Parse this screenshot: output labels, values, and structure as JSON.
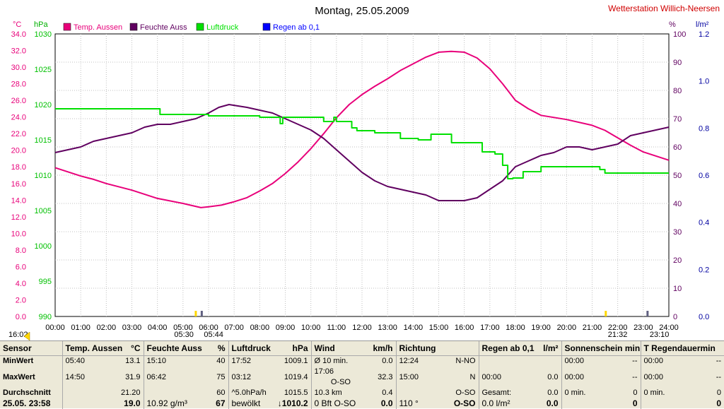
{
  "chart_data": {
    "type": "line",
    "title": "Montag, 25.05.2009",
    "station": "Wetterstation Willich-Neersen",
    "legend": [
      {
        "name": "Temp. Aussen",
        "color": "#e8007a"
      },
      {
        "name": "Feuchte Auss",
        "color": "#600060"
      },
      {
        "name": "Luftdruck",
        "color": "#00e000"
      },
      {
        "name": "Regen ab 0,1",
        "color": "#0000ff"
      }
    ],
    "axes": {
      "left_temp": {
        "unit": "°C",
        "min": 0,
        "max": 34,
        "ticks": [
          "0.0",
          "2.0",
          "4.0",
          "6.0",
          "8.0",
          "10.0",
          "12.0",
          "14.0",
          "16.0",
          "18.0",
          "20.0",
          "22.0",
          "24.0",
          "26.0",
          "28.0",
          "30.0",
          "32.0",
          "34.0"
        ]
      },
      "left_pressure": {
        "unit": "hPa",
        "min": 990,
        "max": 1030,
        "ticks": [
          "990",
          "995",
          "1000",
          "1005",
          "1010",
          "1015",
          "1020",
          "1025",
          "1030"
        ]
      },
      "right_humidity": {
        "unit": "%",
        "min": 0,
        "max": 100,
        "ticks": [
          "0",
          "10",
          "20",
          "30",
          "40",
          "50",
          "60",
          "70",
          "80",
          "90",
          "100"
        ]
      },
      "right_rain": {
        "unit": "l/m²",
        "min": 0,
        "max": 1.2,
        "ticks": [
          "0.0",
          "0.2",
          "0.4",
          "0.6",
          "0.8",
          "1.0",
          "1.2"
        ]
      },
      "x": {
        "ticks": [
          "00:00",
          "01:00",
          "02:00",
          "03:00",
          "04:00",
          "05:00",
          "06:00",
          "07:00",
          "08:00",
          "09:00",
          "10:00",
          "11:00",
          "12:00",
          "13:00",
          "14:00",
          "15:00",
          "16:00",
          "17:00",
          "18:00",
          "19:00",
          "20:00",
          "21:00",
          "22:00",
          "23:00",
          "24:00"
        ]
      }
    },
    "markers": {
      "time": "16:02",
      "sunrise": "05:30",
      "sunrise2": "05:44",
      "sunset": "21:32",
      "end": "23:10"
    },
    "series": [
      {
        "name": "Temp. Aussen",
        "axis": "temp",
        "x": [
          0,
          0.5,
          1,
          1.5,
          2,
          3,
          4,
          5,
          5.7,
          6,
          6.5,
          7,
          7.5,
          8,
          8.5,
          9,
          9.5,
          10,
          10.5,
          11,
          11.5,
          12,
          12.5,
          13,
          13.5,
          14,
          14.5,
          15,
          15.5,
          16,
          16.5,
          17,
          17.5,
          18,
          18.5,
          19,
          20,
          21,
          21.5,
          22,
          22.5,
          23,
          24
        ],
        "y": [
          17.9,
          17.4,
          16.9,
          16.5,
          16.0,
          15.2,
          14.2,
          13.6,
          13.1,
          13.2,
          13.4,
          13.8,
          14.3,
          15.1,
          16.0,
          17.2,
          18.6,
          20.2,
          22.0,
          23.9,
          25.5,
          26.7,
          27.7,
          28.6,
          29.6,
          30.4,
          31.2,
          31.8,
          31.9,
          31.8,
          31.1,
          29.8,
          28.0,
          26.0,
          25.0,
          24.2,
          23.7,
          23.0,
          22.4,
          21.5,
          20.6,
          19.8,
          18.8
        ]
      },
      {
        "name": "Feuchte Auss",
        "axis": "humidity",
        "x": [
          0,
          0.5,
          1,
          1.5,
          2,
          2.5,
          3,
          3.5,
          4,
          4.5,
          5,
          5.5,
          6,
          6.4,
          6.8,
          7.5,
          8,
          8.5,
          9,
          9.5,
          10,
          10.5,
          11,
          11.5,
          12,
          12.5,
          13,
          13.5,
          14,
          14.5,
          15,
          15.5,
          16,
          16.5,
          17,
          17.5,
          18,
          18.5,
          19,
          19.5,
          20,
          20.5,
          21,
          21.5,
          22,
          22.5,
          23,
          23.5,
          24
        ],
        "y": [
          58,
          59,
          60,
          62,
          63,
          64,
          65,
          67,
          68,
          68,
          69,
          70,
          72,
          74,
          75,
          74,
          73,
          72,
          70,
          68,
          66,
          63,
          59,
          55,
          51,
          48,
          46,
          45,
          44,
          43,
          41,
          41,
          41,
          42,
          45,
          48,
          53,
          55,
          57,
          58,
          60,
          60,
          59,
          60,
          61,
          64,
          65,
          66,
          67
        ]
      },
      {
        "name": "Luftdruck",
        "axis": "pressure",
        "x": [
          0,
          4.1,
          4.1,
          6,
          6,
          8,
          8,
          8.8,
          8.8,
          8.9,
          8.9,
          10.5,
          10.5,
          10.9,
          10.9,
          11.0,
          11.0,
          11.6,
          11.6,
          11.8,
          11.8,
          12.5,
          12.5,
          13.5,
          13.5,
          14.2,
          14.2,
          14.7,
          14.7,
          15.5,
          15.5,
          16.7,
          16.7,
          17.2,
          17.2,
          17.5,
          17.5,
          17.7,
          17.7,
          17.9,
          17.9,
          18.3,
          18.3,
          18.5,
          18.5,
          19,
          19,
          21.3,
          21.3,
          21.5,
          21.5,
          24
        ],
        "y": [
          1019.4,
          1019.4,
          1018.6,
          1018.6,
          1018.4,
          1018.4,
          1018.2,
          1018.2,
          1017.3,
          1017.3,
          1018.2,
          1018.2,
          1017.6,
          1017.6,
          1018.2,
          1018.2,
          1017.6,
          1017.6,
          1016.7,
          1016.7,
          1016.3,
          1016.3,
          1016.0,
          1016.0,
          1015.2,
          1015.2,
          1015.0,
          1015.0,
          1015.8,
          1015.8,
          1014.6,
          1014.6,
          1013.3,
          1013.3,
          1013.0,
          1013.0,
          1011.4,
          1011.4,
          1009.5,
          1009.5,
          1009.6,
          1009.6,
          1010.5,
          1010.5,
          1010.5,
          1010.5,
          1011.2,
          1011.2,
          1010.8,
          1010.8,
          1010.3,
          1010.3
        ]
      }
    ]
  },
  "table": {
    "headers": {
      "sensor": "Sensor",
      "temp": "Temp. Aussen",
      "temp_unit": "°C",
      "hum": "Feuchte Auss",
      "hum_unit": "%",
      "press": "Luftdruck",
      "press_unit": "hPa",
      "wind": "Wind",
      "wind_unit": "km/h",
      "dir": "Richtung",
      "rain": "Regen ab 0,1",
      "rain_unit": "l/m²",
      "sun": "Sonnenschein min",
      "rainlen": "T Regendauermin"
    },
    "minwert": {
      "label": "MinWert",
      "temp_t": "05:40",
      "temp_v": "13.1",
      "hum_t": "15:10",
      "hum_v": "40",
      "press_t": "17:52",
      "press_v": "1009.1",
      "wind_t": "Ø 10 min.",
      "wind_v": "0.0",
      "dir_t": "12:24",
      "dir_v": "N-NO",
      "rain_t": "",
      "rain_v": "",
      "sun_t": "00:00",
      "sun_v": "--",
      "rl_t": "00:00",
      "rl_v": "--"
    },
    "maxwert": {
      "label": "MaxWert",
      "temp_t": "14:50",
      "temp_v": "31.9",
      "hum_t": "06:42",
      "hum_v": "75",
      "press_t": "03:12",
      "press_v": "1019.4",
      "wind_t": "17:06",
      "wind_m": "O-SO",
      "wind_v": "32.3",
      "dir_t": "15:00",
      "dir_v": "N",
      "rain_t": "00:00",
      "rain_v": "0.0",
      "sun_t": "00:00",
      "sun_v": "--",
      "rl_t": "00:00",
      "rl_v": "--"
    },
    "durchschnitt": {
      "label": "Durchschnitt",
      "temp_v": "21.20",
      "hum_v": "60",
      "press_t": "^5.0hPa/h",
      "press_v": "1015.5",
      "wind_t": "10.3 km",
      "wind_v": "0.4",
      "dir_v": "O-SO",
      "rain_t": "Gesamt:",
      "rain_v": "0.0",
      "sun_t": "0 min.",
      "sun_v": "0",
      "rl_t": "0 min.",
      "rl_v": "0"
    },
    "current": {
      "label": "25.05. 23:58",
      "temp_v": "19.0",
      "hum_t": "10.92 g/m³",
      "hum_v": "67",
      "press_t": "bewölkt",
      "press_v": "↓1010.2",
      "wind_t": "0 Bft O-SO",
      "wind_v": "0.0",
      "dir_t": "110 °",
      "dir_v": "O-SO",
      "rain_t": "0.0 l/m²",
      "rain_v": "0.0",
      "sun_v": "0",
      "rl_v": "0"
    }
  }
}
